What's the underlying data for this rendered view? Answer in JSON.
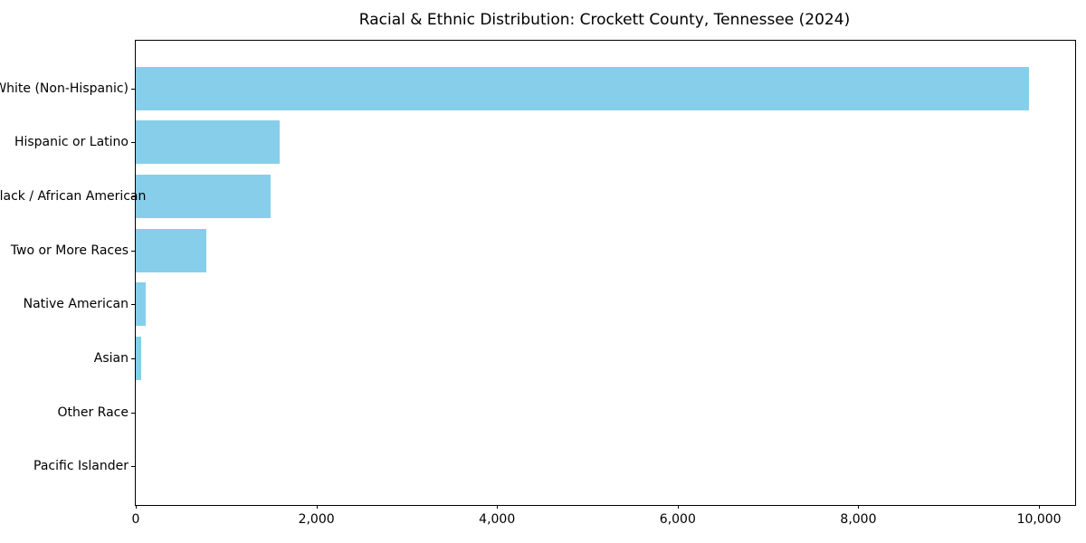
{
  "figure": {
    "background": "#ffffff",
    "text_color": "#000000"
  },
  "chart_data": {
    "type": "bar",
    "orientation": "horizontal",
    "title": "Racial & Ethnic Distribution: Crockett County, Tennessee (2024)",
    "categories": [
      "White (Non-Hispanic)",
      "Hispanic or Latino",
      "Black / African American",
      "Two or More Races",
      "Native American",
      "Asian",
      "Other Race",
      "Pacific Islander"
    ],
    "values": [
      9890,
      1590,
      1490,
      780,
      110,
      65,
      0,
      0
    ],
    "xlabel": "",
    "ylabel": "",
    "xlim": [
      0,
      10400
    ],
    "x_ticks": [
      0,
      2000,
      4000,
      6000,
      8000,
      10000
    ],
    "x_tick_labels": [
      "0",
      "2,000",
      "4,000",
      "6,000",
      "8,000",
      "10,000"
    ],
    "bar_color": "#87CEEB",
    "grid": false,
    "legend": null
  }
}
